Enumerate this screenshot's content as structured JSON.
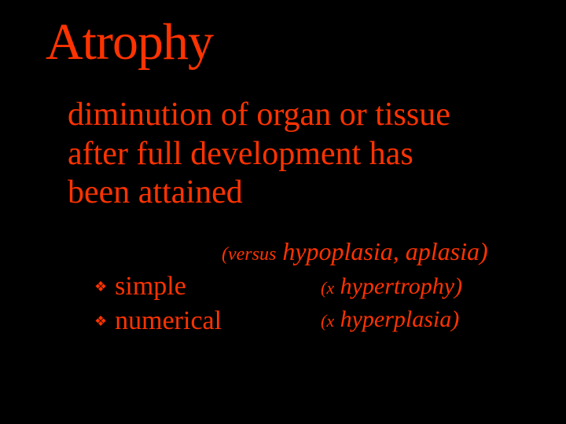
{
  "slide": {
    "background_color": "#000000",
    "text_color": "#ff3300",
    "font_family": "Times New Roman",
    "title": "Atrophy",
    "title_fontsize": 66,
    "definition_line1": "diminution of organ or tissue",
    "definition_line2": "after full development has",
    "definition_line3": "been attained",
    "definition_fontsize": 42,
    "versus_prefix": "(versus",
    "versus_rest": " hypoplasia, aplasia)",
    "versus_fontsize": 32,
    "versus_prefix_fontsize": 24,
    "bullets": [
      {
        "label": "simple",
        "contrast_x": "(x",
        "contrast_rest": "  hypertrophy)"
      },
      {
        "label": "numerical",
        "contrast_x": "(x",
        "contrast_rest": "  hyperplasia)"
      }
    ],
    "bullet_fontsize": 34,
    "bullet_marker": "❖",
    "contrast_fontsize": 30
  }
}
